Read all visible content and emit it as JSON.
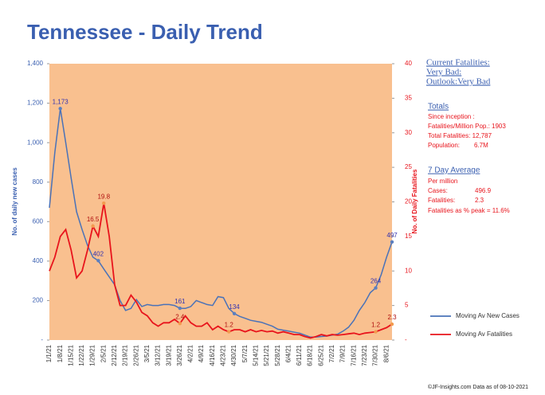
{
  "chart_data": {
    "type": "line",
    "title": "Tennessee - Daily Trend",
    "y_label": "No. of daily new  cases",
    "y2_label": "No. of Daily Fatalities",
    "categories": [
      "1/1/21",
      null,
      "1/8/21",
      null,
      "1/15/21",
      null,
      "1/22/21",
      null,
      "1/29/21",
      null,
      "2/5/21",
      null,
      "2/12/21",
      null,
      "2/19/21",
      null,
      "2/26/21",
      null,
      "3/5/21",
      null,
      "3/12/21",
      null,
      "3/19/21",
      null,
      "3/26/21",
      null,
      "4/2/21",
      null,
      "4/9/21",
      null,
      "4/16/21",
      null,
      "4/23/21",
      null,
      "4/30/21",
      null,
      "5/7/21",
      null,
      "5/14/21",
      null,
      "5/21/21",
      null,
      "5/28/21",
      null,
      "6/4/21",
      null,
      "6/11/21",
      null,
      "6/18/21",
      null,
      "6/25/21",
      null,
      "7/2/21",
      null,
      "7/9/21",
      null,
      "7/16/21",
      null,
      "7/23/21",
      null,
      "7/30/21",
      null,
      "8/6/21",
      null
    ],
    "series": [
      {
        "name": "Moving Av New Cases",
        "color": "#4a72b8",
        "axis": "y",
        "values": [
          670,
          950,
          1173,
          1000,
          820,
          650,
          560,
          480,
          420,
          402,
          360,
          320,
          280,
          200,
          150,
          160,
          205,
          170,
          180,
          175,
          175,
          180,
          180,
          175,
          161,
          160,
          170,
          200,
          190,
          180,
          175,
          220,
          215,
          160,
          134,
          120,
          110,
          100,
          95,
          90,
          80,
          70,
          55,
          50,
          45,
          40,
          35,
          25,
          15,
          15,
          18,
          20,
          25,
          30,
          45,
          65,
          100,
          150,
          190,
          240,
          264,
          330,
          420,
          497
        ],
        "value_labels": [
          null,
          null,
          "1,173",
          null,
          null,
          null,
          null,
          null,
          null,
          "402",
          null,
          null,
          null,
          null,
          null,
          null,
          null,
          null,
          null,
          null,
          null,
          null,
          null,
          null,
          "161",
          null,
          null,
          null,
          null,
          null,
          null,
          null,
          null,
          null,
          "134",
          null,
          null,
          null,
          null,
          null,
          null,
          null,
          null,
          null,
          null,
          null,
          null,
          null,
          null,
          null,
          null,
          null,
          null,
          null,
          null,
          null,
          null,
          null,
          null,
          null,
          "264",
          null,
          null,
          "497"
        ]
      },
      {
        "name": "Moving Av Fatalities",
        "color": "#e8141c",
        "axis": "y2",
        "values": [
          10,
          12,
          15,
          16,
          13,
          9,
          10,
          13,
          16.5,
          15,
          19.8,
          15,
          8,
          5,
          5,
          6.5,
          5.5,
          4,
          3.5,
          2.5,
          2,
          2.5,
          2.5,
          3,
          2.4,
          3.5,
          2.5,
          2,
          2,
          2.5,
          1.5,
          2,
          1.5,
          1.2,
          1.5,
          1.5,
          1.2,
          1.5,
          1.2,
          1.4,
          1.2,
          1.3,
          1,
          1.2,
          1,
          0.8,
          0.8,
          0.5,
          0.3,
          0.5,
          0.8,
          0.6,
          0.8,
          0.7,
          0.8,
          0.9,
          1,
          0.8,
          1,
          1.1,
          1.2,
          1.5,
          1.8,
          2.3
        ],
        "value_labels": [
          null,
          null,
          null,
          null,
          null,
          null,
          null,
          null,
          "16.5",
          null,
          "19.8",
          null,
          null,
          null,
          null,
          null,
          null,
          null,
          null,
          null,
          null,
          null,
          null,
          null,
          "2.4",
          null,
          null,
          null,
          null,
          null,
          null,
          null,
          null,
          "1.2",
          null,
          null,
          null,
          null,
          null,
          null,
          null,
          null,
          null,
          null,
          null,
          null,
          null,
          null,
          null,
          null,
          null,
          null,
          null,
          null,
          null,
          null,
          null,
          null,
          null,
          null,
          "1.2",
          null,
          null,
          "2.3"
        ]
      }
    ],
    "ylim": [
      0,
      1400
    ],
    "yticks": [
      {
        "value": 0,
        "label": "-"
      },
      200,
      400,
      600,
      800,
      {
        "value": 1000,
        "label": "1,000"
      },
      {
        "value": 1200,
        "label": "1,200"
      },
      {
        "value": 1400,
        "label": "1,400"
      }
    ],
    "y2lim": [
      0,
      40
    ],
    "y2ticks": [
      {
        "value": 0,
        "label": "-"
      },
      5,
      10,
      15,
      20,
      25,
      30,
      35,
      40
    ],
    "legend": "bottom-right",
    "panel": {
      "status": [
        "Current Fatalities:",
        "Very Bad:",
        "Outlook:Very Bad"
      ],
      "totals": {
        "title": "Totals",
        "lines": [
          "Since inception :",
          "Fatalities/Million Pop.: 1903",
          "Total Fatalities: 12,787"
        ],
        "pair": {
          "label": "Population:",
          "value": "6.7M"
        }
      },
      "average": {
        "title": "7 Day Average",
        "lines": [
          "Per million"
        ],
        "pairs": [
          {
            "label": "Cases:",
            "value": "496.9"
          },
          {
            "label": "Fatalities:",
            "value": "2.3"
          }
        ],
        "footer": "Fatalities as % peak = 11.6%"
      }
    },
    "source": "©JF-Insights.com  Data as of 08-10-2021"
  }
}
